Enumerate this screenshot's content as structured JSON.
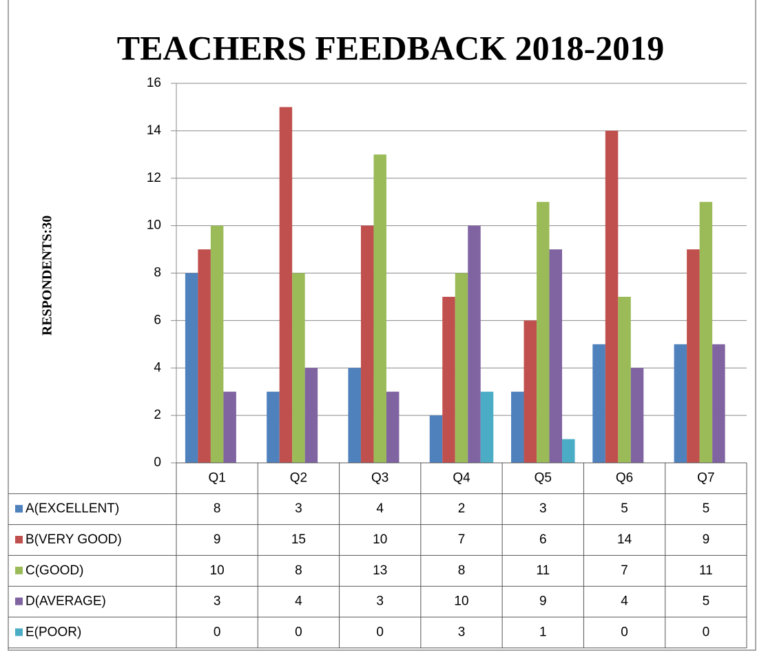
{
  "chart_data": {
    "type": "bar",
    "title": "TEACHERS FEEDBACK 2018-2019",
    "y_label": "RESPONDENTS:30",
    "categories": [
      "Q1",
      "Q2",
      "Q3",
      "Q4",
      "Q5",
      "Q6",
      "Q7"
    ],
    "series": [
      {
        "name": "A(EXCELLENT)",
        "color": "#4f81bd",
        "values": [
          8,
          3,
          4,
          2,
          3,
          5,
          5
        ]
      },
      {
        "name": "B(VERY GOOD)",
        "color": "#c0504d",
        "values": [
          9,
          15,
          10,
          7,
          6,
          14,
          9
        ]
      },
      {
        "name": "C(GOOD)",
        "color": "#9bbb59",
        "values": [
          10,
          8,
          13,
          8,
          11,
          7,
          11
        ]
      },
      {
        "name": "D(AVERAGE)",
        "color": "#8064a2",
        "values": [
          3,
          4,
          3,
          10,
          9,
          4,
          5
        ]
      },
      {
        "name": "E(POOR)",
        "color": "#4bacc6",
        "values": [
          0,
          0,
          0,
          3,
          1,
          0,
          0
        ]
      }
    ],
    "ylim": [
      0,
      16
    ],
    "yticks": [
      0,
      2,
      4,
      6,
      8,
      10,
      12,
      14,
      16
    ],
    "grid": true,
    "legend": "table"
  }
}
